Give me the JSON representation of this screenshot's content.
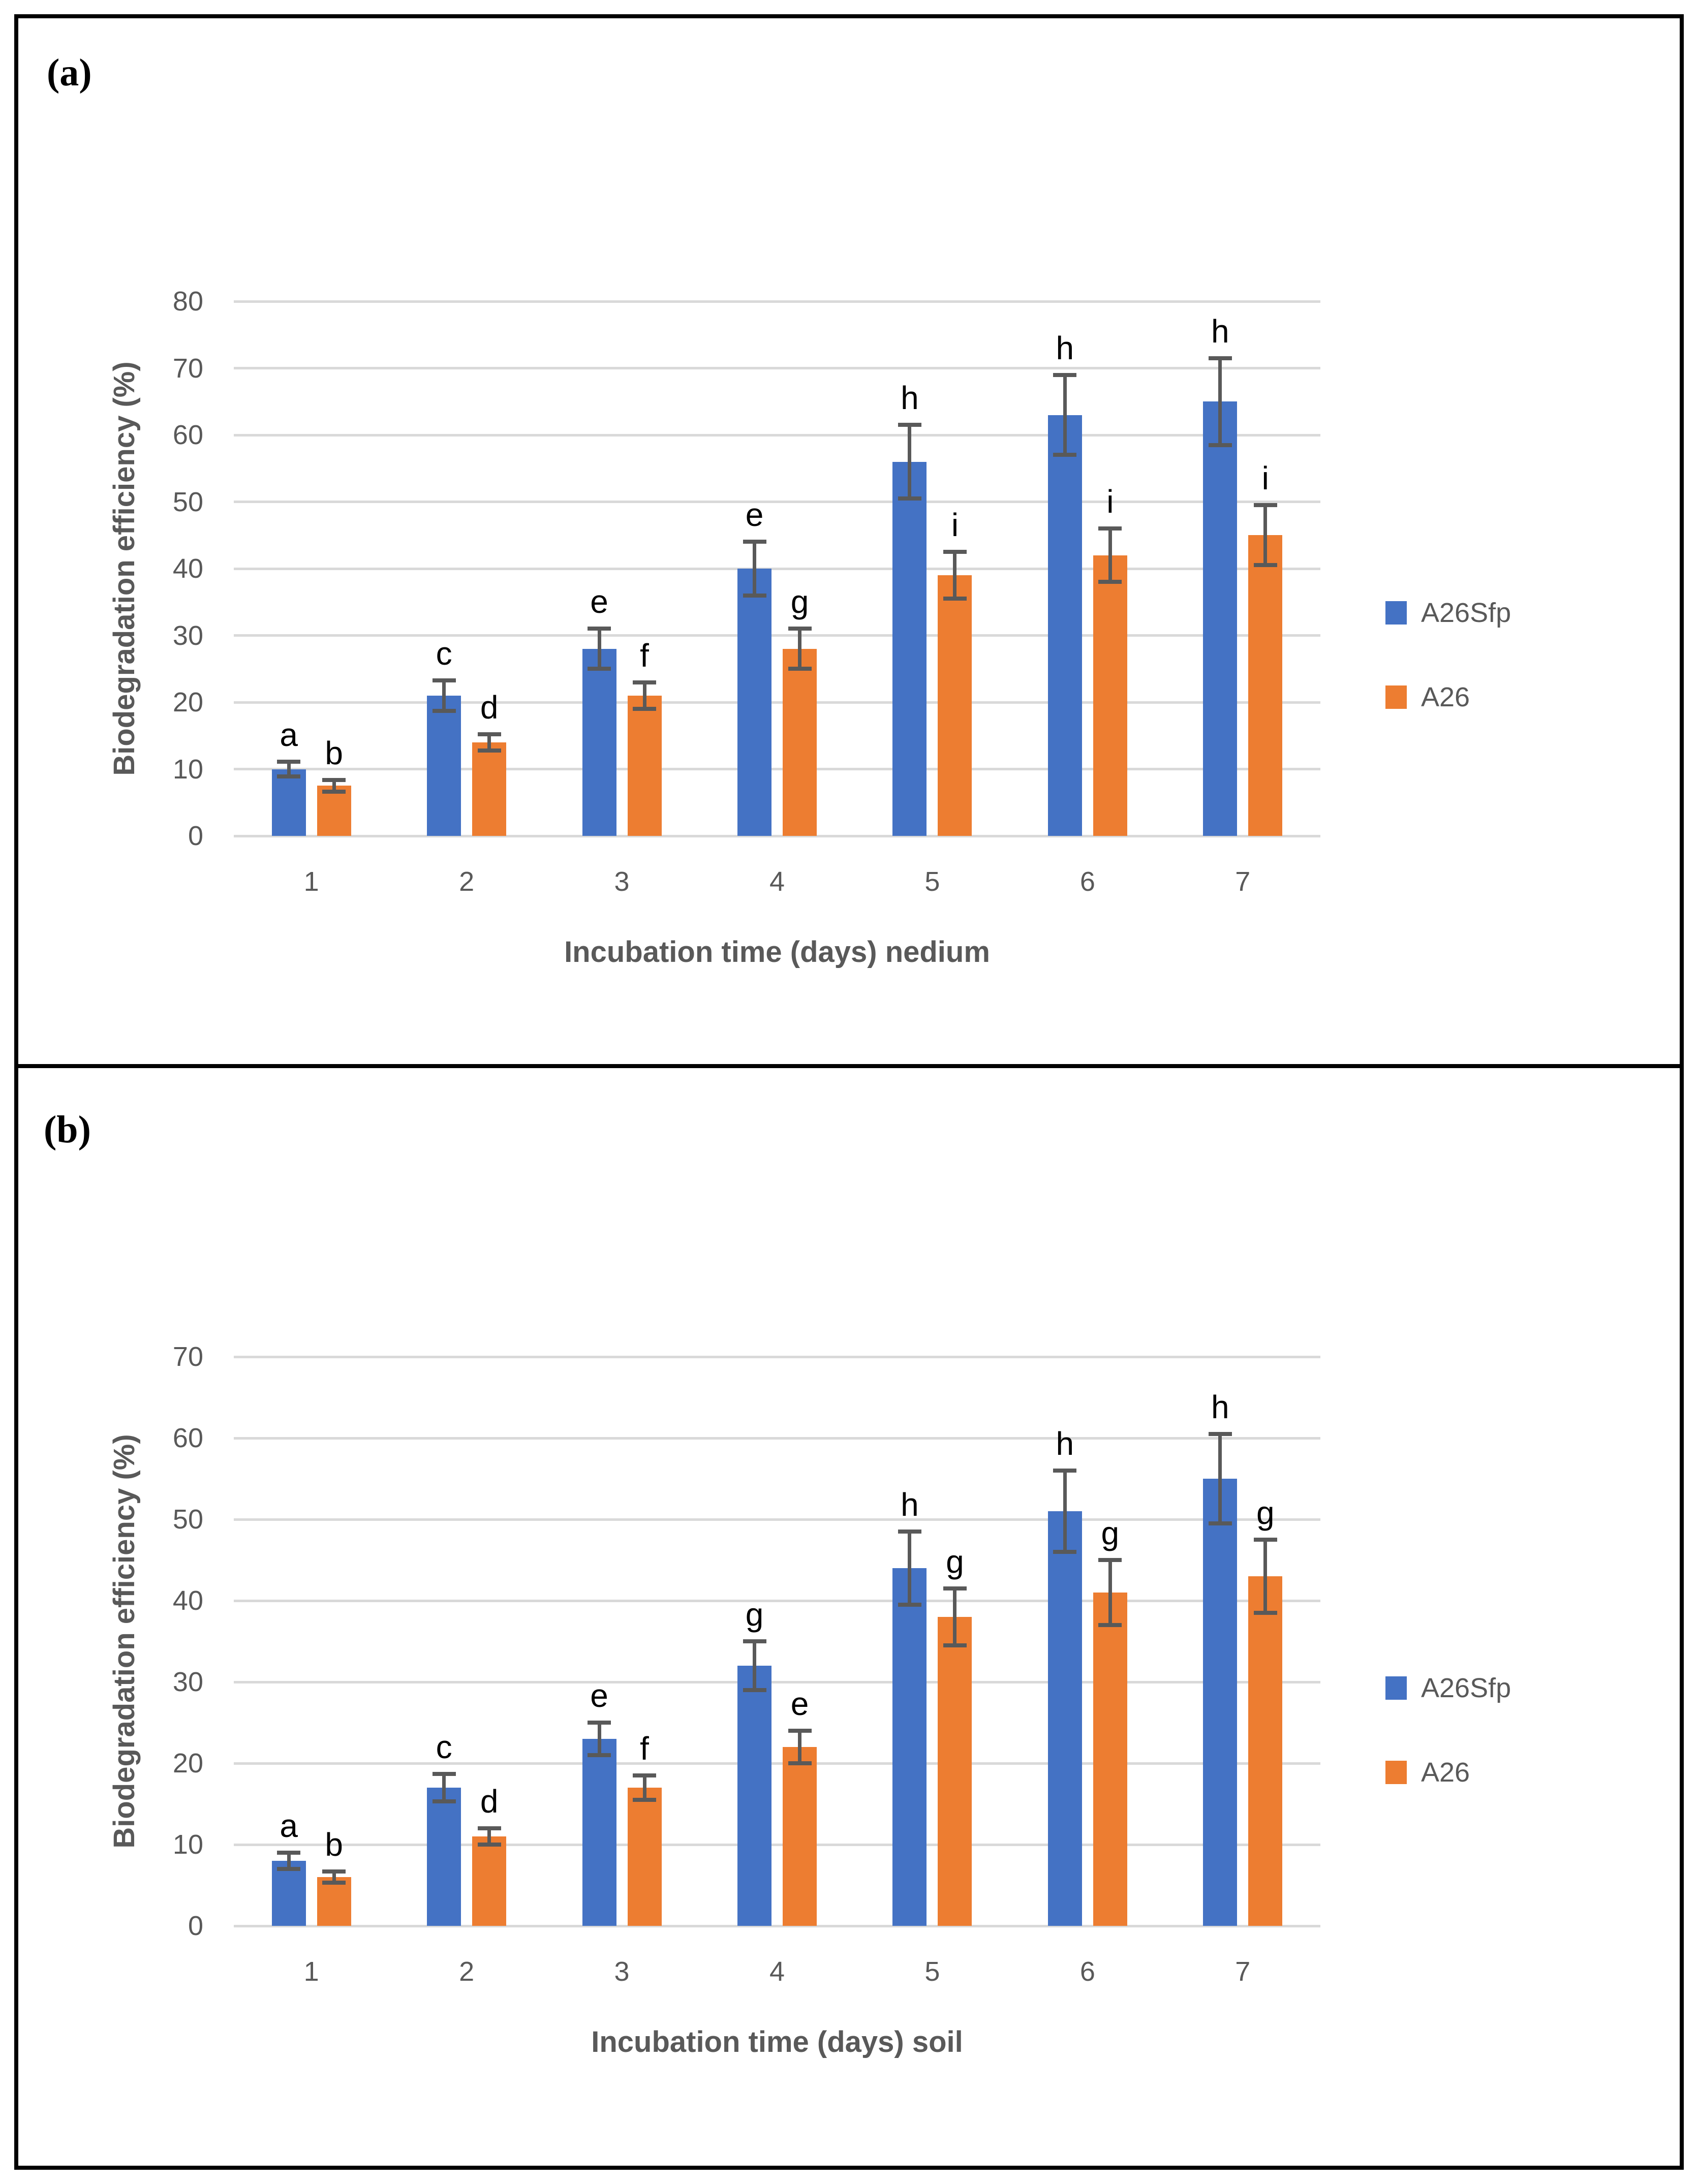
{
  "colors": {
    "series_a26sfp": "#4472C4",
    "series_a26": "#ED7D31",
    "gridline": "#D9D9D9",
    "axis_text": "#595959",
    "error_bar": "#595959",
    "significance_letter": "#000000",
    "panel_border": "#000000",
    "background": "#FFFFFF"
  },
  "chart_data": [
    {
      "type": "bar",
      "panel_label": "(a)",
      "title": "",
      "xlabel": "Incubation time (days) nedium",
      "ylabel": "Biodegradation efficiency (%)",
      "ylim": [
        0,
        80
      ],
      "y_tick_step": 10,
      "y_tick_labels": [
        "0",
        "10",
        "20",
        "30",
        "40",
        "50",
        "60",
        "70",
        "80"
      ],
      "grid": true,
      "legend_position": "right",
      "categories": [
        "1",
        "2",
        "3",
        "4",
        "5",
        "6",
        "7"
      ],
      "series": [
        {
          "name": "A26Sfp",
          "color": "#4472C4",
          "values": [
            10,
            21,
            28,
            40,
            56,
            63,
            65
          ],
          "errors": [
            1.1,
            2.3,
            3,
            4,
            5.5,
            6,
            6.5
          ],
          "sig_letters": [
            "a",
            "c",
            "e",
            "e",
            "h",
            "h",
            "h"
          ]
        },
        {
          "name": "A26",
          "color": "#ED7D31",
          "values": [
            7.5,
            14,
            21,
            28,
            39,
            42,
            45
          ],
          "errors": [
            0.9,
            1.2,
            2,
            3,
            3.5,
            4,
            4.5
          ],
          "sig_letters": [
            "b",
            "d",
            "f",
            "g",
            "i",
            "i",
            "i"
          ]
        }
      ]
    },
    {
      "type": "bar",
      "panel_label": "(b)",
      "title": "",
      "xlabel": "Incubation time (days) soil",
      "ylabel": "Biodegradation efficiency (%)",
      "ylim": [
        0,
        70
      ],
      "y_tick_step": 10,
      "y_tick_labels": [
        "0",
        "10",
        "20",
        "30",
        "40",
        "50",
        "60",
        "70"
      ],
      "grid": true,
      "legend_position": "right",
      "categories": [
        "1",
        "2",
        "3",
        "4",
        "5",
        "6",
        "7"
      ],
      "series": [
        {
          "name": "A26Sfp",
          "color": "#4472C4",
          "values": [
            8,
            17,
            23,
            32,
            44,
            51,
            55
          ],
          "errors": [
            1,
            1.7,
            2,
            3,
            4.5,
            5,
            5.5
          ],
          "sig_letters": [
            "a",
            "c",
            "e",
            "g",
            "h",
            "h",
            "h"
          ]
        },
        {
          "name": "A26",
          "color": "#ED7D31",
          "values": [
            6,
            11,
            17,
            22,
            38,
            41,
            43
          ],
          "errors": [
            0.7,
            1,
            1.5,
            2,
            3.5,
            4,
            4.5
          ],
          "sig_letters": [
            "b",
            "d",
            "f",
            "e",
            "g",
            "g",
            "g"
          ]
        }
      ]
    }
  ]
}
